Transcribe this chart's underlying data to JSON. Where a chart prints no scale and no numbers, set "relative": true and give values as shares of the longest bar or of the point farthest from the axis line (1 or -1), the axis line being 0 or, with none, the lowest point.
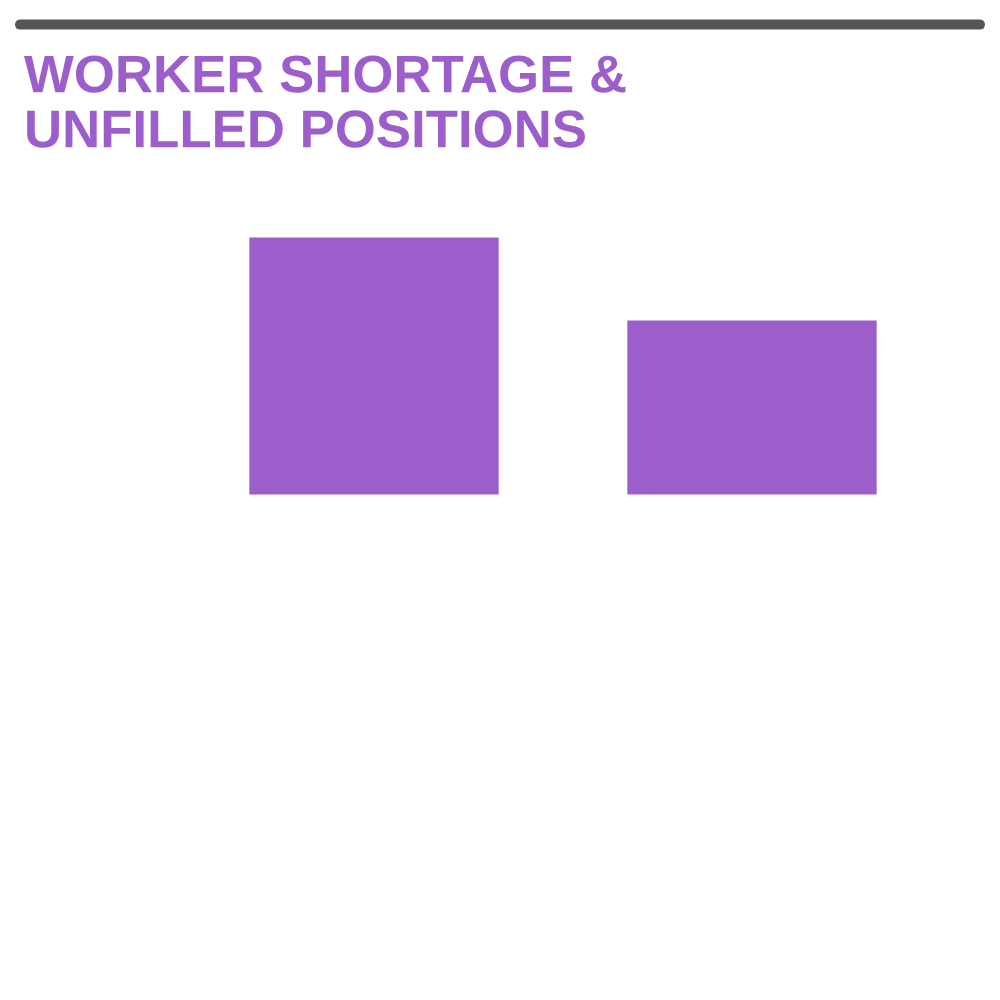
{
  "chart_data": {
    "type": "bar",
    "title": "WORKER SHORTAGE &\nUNFILLED POSITIONS",
    "categories": [
      null,
      null
    ],
    "values": [
      1,
      0.68
    ],
    "color": "#9c5ecb",
    "relative": true
  }
}
